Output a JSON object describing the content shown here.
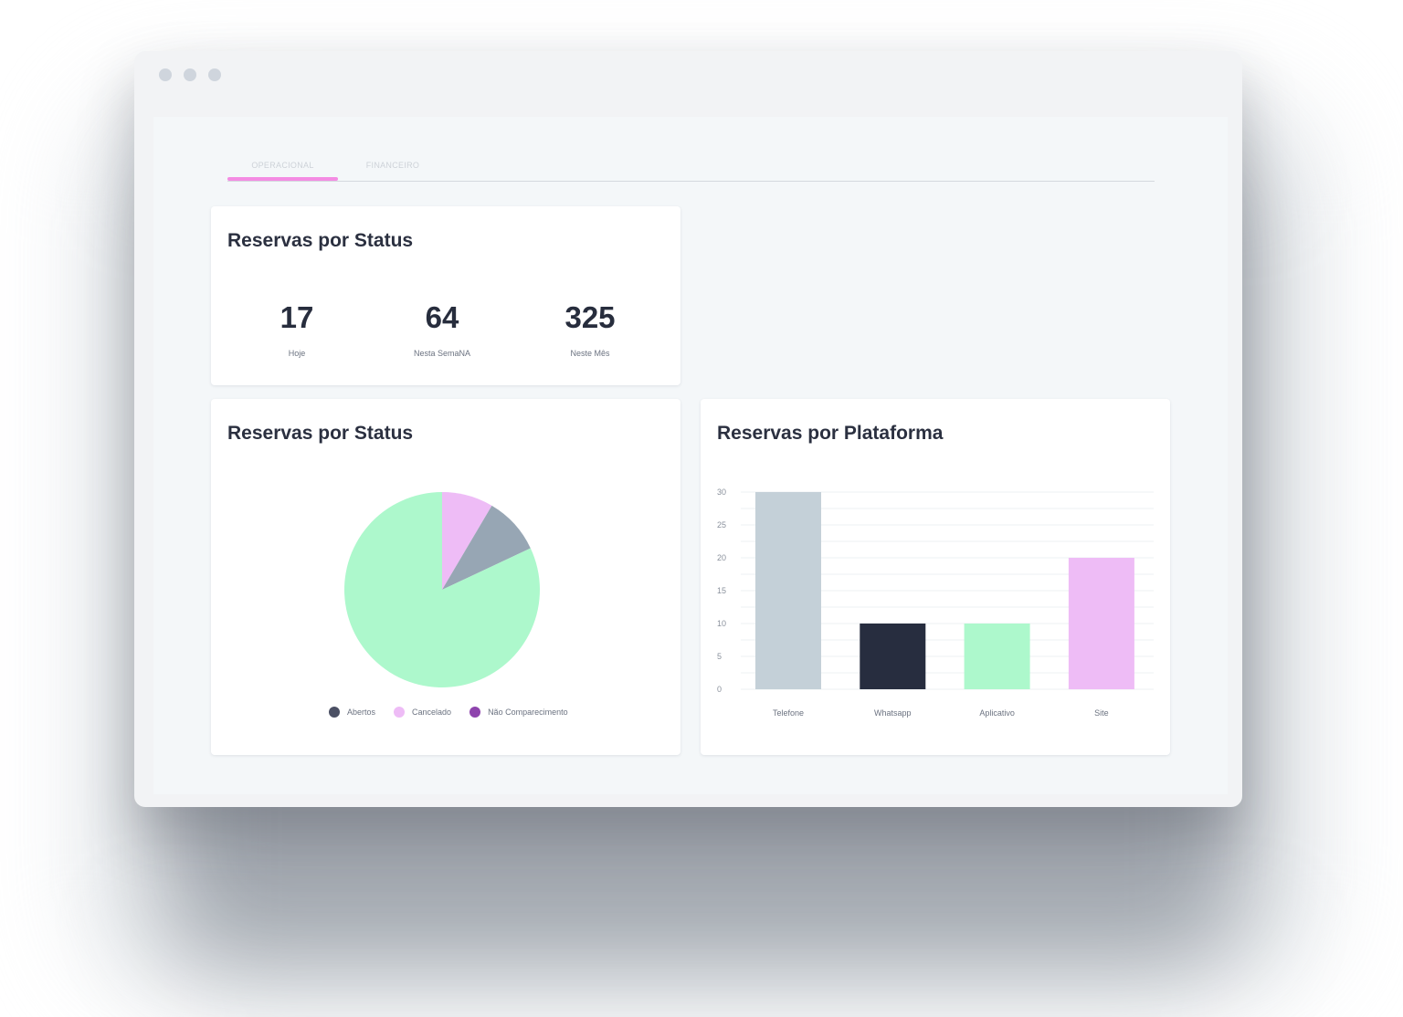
{
  "tabs": [
    {
      "label": "OPERACIONAL",
      "active": true
    },
    {
      "label": "FINANCEIRO",
      "active": false
    }
  ],
  "stats_card": {
    "title": "Reservas por Status",
    "stats": [
      {
        "value": "17",
        "label": "Hoje"
      },
      {
        "value": "64",
        "label": "Nesta SemaNA"
      },
      {
        "value": "325",
        "label": "Neste Mês"
      }
    ]
  },
  "pie_card": {
    "title": "Reservas por Status",
    "legend": [
      {
        "label": "Abertos",
        "color": "#4b5064"
      },
      {
        "label": "Cancelado",
        "color": "#eebcf6"
      },
      {
        "label": "Não Comparecimento",
        "color": "#8e44ad"
      }
    ]
  },
  "bar_card": {
    "title": "Reservas por Plataforma"
  },
  "chart_data": [
    {
      "type": "pie",
      "title": "Reservas por Status",
      "slices": [
        {
          "value": 8.5,
          "color": "#eebcf6"
        },
        {
          "value": 9.5,
          "color": "#97a6b4"
        },
        {
          "value": 82,
          "color": "#adf8cc"
        }
      ],
      "legend_labels": [
        "Abertos",
        "Cancelado",
        "Não Comparecimento"
      ],
      "legend": "bottom"
    },
    {
      "type": "bar",
      "title": "Reservas por Plataforma",
      "categories": [
        "Telefone",
        "Whatsapp",
        "Aplicativo",
        "Site"
      ],
      "values": [
        30,
        10,
        10,
        20
      ],
      "colors": [
        "#c4d0d8",
        "#272d3f",
        "#adf8cc",
        "#eebcf6"
      ],
      "yticks": [
        0,
        5,
        10,
        15,
        20,
        25,
        30
      ],
      "ylim": [
        0,
        30
      ],
      "grid": true
    }
  ]
}
